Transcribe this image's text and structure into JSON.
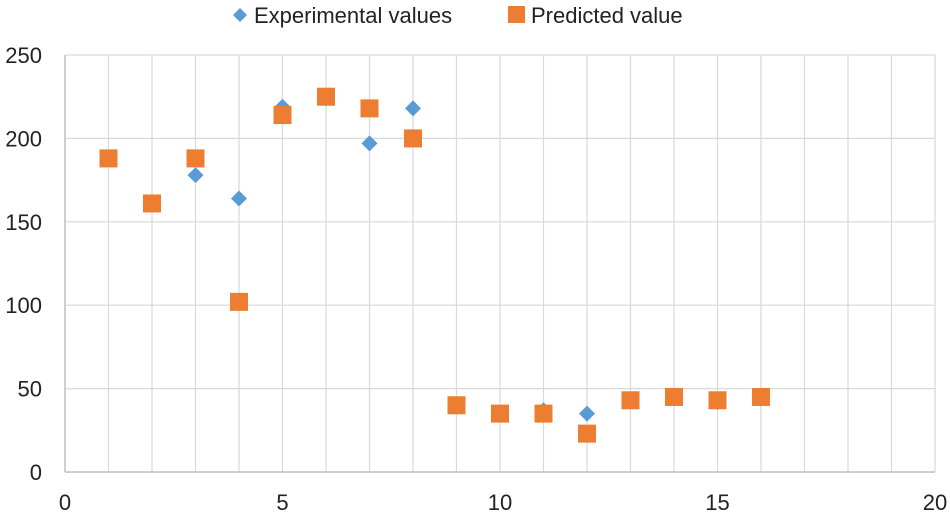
{
  "chart_data": {
    "type": "scatter",
    "title": "",
    "xlabel": "",
    "ylabel": "",
    "xlim": [
      0,
      20
    ],
    "ylim": [
      0,
      250
    ],
    "x_ticks": [
      0,
      5,
      10,
      15,
      20
    ],
    "y_ticks": [
      0,
      50,
      100,
      150,
      200,
      250
    ],
    "x_tick_labels": [
      "0",
      "5",
      "10",
      "15",
      "20"
    ],
    "y_tick_labels": [
      "0",
      "50",
      "100",
      "150",
      "200",
      "250"
    ],
    "grid": true,
    "legend_position": "top-center",
    "series": [
      {
        "name": "Experimental values",
        "marker": "diamond",
        "color": "#5B9BD5",
        "points": [
          {
            "x": 1,
            "y": 188
          },
          {
            "x": 2,
            "y": 161
          },
          {
            "x": 3,
            "y": 178
          },
          {
            "x": 4,
            "y": 164
          },
          {
            "x": 5,
            "y": 219
          },
          {
            "x": 6,
            "y": 224
          },
          {
            "x": 7,
            "y": 197
          },
          {
            "x": 8,
            "y": 218
          },
          {
            "x": 9,
            "y": 40
          },
          {
            "x": 10,
            "y": 35
          },
          {
            "x": 11,
            "y": 37
          },
          {
            "x": 12,
            "y": 35
          },
          {
            "x": 13,
            "y": 43
          },
          {
            "x": 14,
            "y": 45
          },
          {
            "x": 15,
            "y": 42
          },
          {
            "x": 16,
            "y": 44
          }
        ]
      },
      {
        "name": "Predicted value",
        "marker": "square",
        "color": "#ED7D31",
        "points": [
          {
            "x": 1,
            "y": 188
          },
          {
            "x": 2,
            "y": 161
          },
          {
            "x": 3,
            "y": 188
          },
          {
            "x": 4,
            "y": 102
          },
          {
            "x": 5,
            "y": 214
          },
          {
            "x": 6,
            "y": 225
          },
          {
            "x": 7,
            "y": 218
          },
          {
            "x": 8,
            "y": 200
          },
          {
            "x": 9,
            "y": 40
          },
          {
            "x": 10,
            "y": 35
          },
          {
            "x": 11,
            "y": 35
          },
          {
            "x": 12,
            "y": 23
          },
          {
            "x": 13,
            "y": 43
          },
          {
            "x": 14,
            "y": 45
          },
          {
            "x": 15,
            "y": 43
          },
          {
            "x": 16,
            "y": 45
          }
        ]
      }
    ]
  }
}
